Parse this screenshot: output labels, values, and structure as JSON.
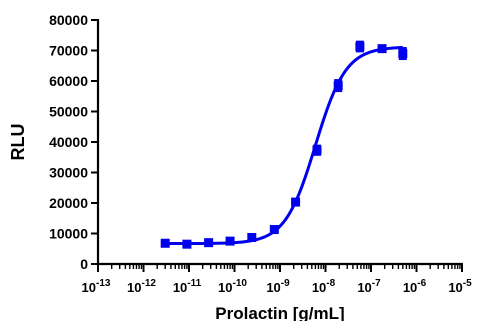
{
  "chart_data": {
    "type": "scatter",
    "xlabel": "Prolactin [g/mL]",
    "ylabel": "RLU",
    "xscale": "log",
    "xlim": [
      1e-13,
      1e-05
    ],
    "ylim": [
      0,
      80000
    ],
    "x_tick_exponents": [
      -13,
      -12,
      -11,
      -10,
      -9,
      -8,
      -7,
      -6,
      -5
    ],
    "x_tick_base": "10",
    "y_ticks": [
      0,
      10000,
      20000,
      30000,
      40000,
      50000,
      60000,
      70000,
      80000
    ],
    "y_tick_labels": [
      "0",
      "10000",
      "20000",
      "30000",
      "40000",
      "50000",
      "60000",
      "70000",
      "80000"
    ],
    "grid": false,
    "series": [
      {
        "color": "#0000ee",
        "marker": "square",
        "points": [
          {
            "x": 3e-12,
            "y": 6800,
            "err": 600
          },
          {
            "x": 9e-12,
            "y": 6500,
            "err": 500
          },
          {
            "x": 2.7e-11,
            "y": 7000,
            "err": 500
          },
          {
            "x": 8e-11,
            "y": 7500,
            "err": 500
          },
          {
            "x": 2.4e-10,
            "y": 8700,
            "err": 600
          },
          {
            "x": 7.5e-10,
            "y": 11300,
            "err": 700
          },
          {
            "x": 2.2e-09,
            "y": 20300,
            "err": 900
          },
          {
            "x": 6.5e-09,
            "y": 37300,
            "err": 1500
          },
          {
            "x": 1.9e-08,
            "y": 58500,
            "err": 1800
          },
          {
            "x": 5.7e-08,
            "y": 71300,
            "err": 1600
          },
          {
            "x": 1.75e-07,
            "y": 70600,
            "err": 800
          },
          {
            "x": 5e-07,
            "y": 69000,
            "err": 1800
          }
        ],
        "fit": {
          "model": "4PL",
          "bottom": 6700,
          "top": 71200,
          "log_ec50": -8.22,
          "hill": 1.3
        }
      }
    ]
  }
}
